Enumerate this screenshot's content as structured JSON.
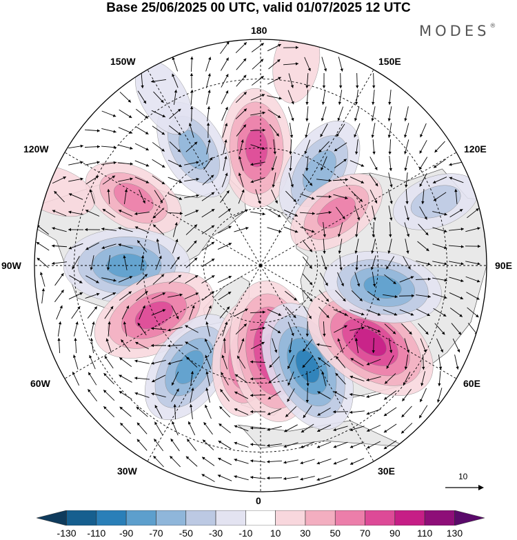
{
  "title": "Base 25/06/2025 00 UTC, valid 01/07/2025 12 UTC",
  "brand": {
    "name": "MODES",
    "mark": "®"
  },
  "longitude_labels": {
    "top": "180",
    "bottom": "0",
    "left": "90W",
    "right": "90E",
    "upper_left": "150W",
    "upper_right": "150E",
    "mid_upper_left": "120W",
    "mid_upper_right": "120E",
    "mid_lower_left": "60W",
    "mid_lower_right": "60E",
    "lower_left": "30W",
    "lower_right": "30E"
  },
  "reference_vector": {
    "label": "10"
  },
  "colorbar": {
    "ticks": [
      "-130",
      "-110",
      "-90",
      "-70",
      "-50",
      "-30",
      "-10",
      "10",
      "30",
      "50",
      "70",
      "90",
      "110",
      "130"
    ],
    "colors": [
      "#0f3b5c",
      "#165f8f",
      "#2a7fb8",
      "#5d9fcd",
      "#8fb6da",
      "#bcc9e3",
      "#e3e3f1",
      "#ffffff",
      "#f8d7dd",
      "#f3aec0",
      "#ec7eaa",
      "#dd4a97",
      "#c61e86",
      "#8e0e78",
      "#5a0a6a"
    ]
  },
  "map_features": {
    "projection": "north-polar-stereographic",
    "anomalies": [
      {
        "id": "anom-1",
        "lat": 50,
        "lon": -178,
        "value": 70
      },
      {
        "id": "anom-2",
        "lat": 52,
        "lon": 148,
        "value": -60
      },
      {
        "id": "anom-3",
        "lat": 45,
        "lon": -150,
        "value": -50
      },
      {
        "id": "anom-4",
        "lat": 42,
        "lon": -118,
        "value": 50
      },
      {
        "id": "anom-5",
        "lat": 45,
        "lon": -90,
        "value": -80
      },
      {
        "id": "anom-6",
        "lat": 50,
        "lon": -65,
        "value": 80
      },
      {
        "id": "anom-7",
        "lat": 48,
        "lon": -35,
        "value": -70
      },
      {
        "id": "anom-8",
        "lat": 58,
        "lon": -8,
        "value": 70
      },
      {
        "id": "anom-9",
        "lat": 60,
        "lon": 8,
        "value": 100
      },
      {
        "id": "anom-10",
        "lat": 52,
        "lon": 25,
        "value": -90
      },
      {
        "id": "anom-11",
        "lat": 45,
        "lon": 55,
        "value": 100
      },
      {
        "id": "anom-12",
        "lat": 48,
        "lon": 80,
        "value": -70
      },
      {
        "id": "anom-13",
        "lat": 58,
        "lon": 125,
        "value": 50
      },
      {
        "id": "anom-14",
        "lat": 30,
        "lon": 110,
        "value": -30
      },
      {
        "id": "anom-15",
        "lat": 22,
        "lon": -110,
        "value": 20
      },
      {
        "id": "anom-16",
        "lat": 28,
        "lon": -150,
        "value": -20
      },
      {
        "id": "anom-17",
        "lat": 25,
        "lon": 170,
        "value": 20
      }
    ]
  }
}
